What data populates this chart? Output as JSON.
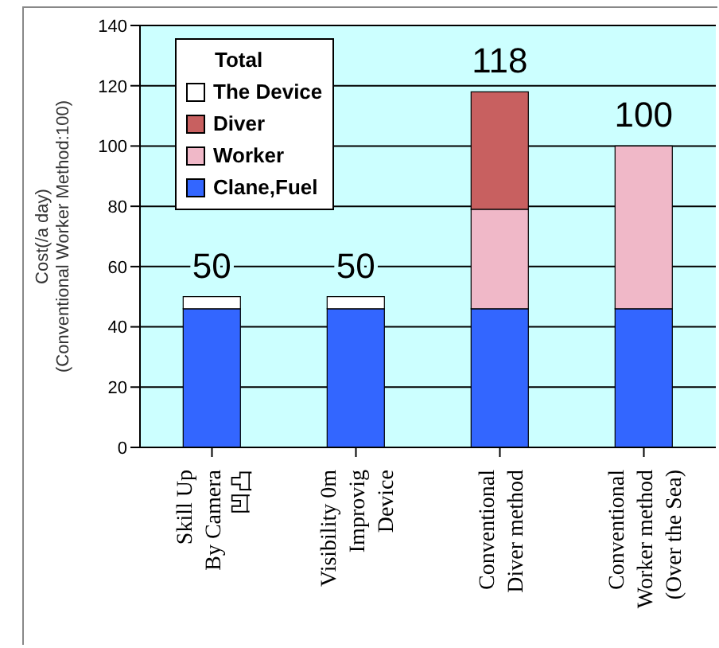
{
  "chart_data": {
    "type": "bar",
    "stacked": true,
    "ylabel": "Cost(/a day)\n(Conventional Worker Method:100)",
    "legend_title": "Total",
    "categories": [
      "Skill Up\nBy Camera\n凹凸",
      "Visibility 0m\nImprovig\nDevice",
      "Conventional\nDiver method",
      "Conventional\nWorker method\n(Over the Sea)"
    ],
    "series": [
      {
        "name": "Clane,Fuel",
        "color": "#3366ff",
        "values": [
          46,
          46,
          46,
          46
        ]
      },
      {
        "name": "Worker",
        "color": "#f0b8c8",
        "values": [
          0,
          0,
          33,
          54
        ]
      },
      {
        "name": "Diver",
        "color": "#c86060",
        "values": [
          0,
          0,
          39,
          0
        ]
      },
      {
        "name": "The Device",
        "color": "#ffffff",
        "values": [
          4,
          4,
          0,
          0
        ]
      }
    ],
    "totals": [
      "50",
      "50",
      "118",
      "100"
    ],
    "ylim": [
      0,
      140
    ],
    "yticks": [
      0,
      20,
      40,
      60,
      80,
      100,
      120,
      140
    ],
    "grid": "y",
    "legend": "top left"
  }
}
